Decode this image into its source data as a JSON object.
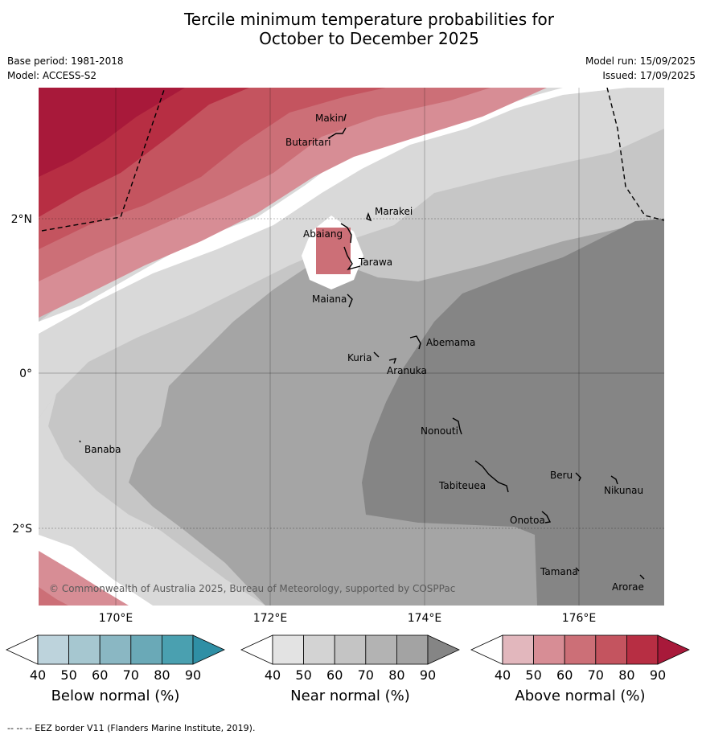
{
  "title_line1": "Tercile minimum temperature probabilities for",
  "title_line2": "October to December 2025",
  "base_period": "Base period: 1981-2018",
  "model": "Model: ACCESS-S2",
  "model_run": "Model run: 15/09/2025",
  "issued": "Issued: 17/09/2025",
  "copyright": "© Commonwealth of Australia 2025, Bureau of Meteorology, supported by COSPPac",
  "footnote": "-- -- -- EEZ border V11 (Flanders Marine Institute, 2019).",
  "lat_labels": [
    "2°N",
    "0°",
    "2°S"
  ],
  "lon_labels": [
    "170°E",
    "172°E",
    "174°E",
    "176°E"
  ],
  "places": [
    "Makin",
    "Butaritari",
    "Marakei",
    "Abaiang",
    "Tarawa",
    "Maiana",
    "Abemama",
    "Kuria",
    "Aranuka",
    "Nonouti",
    "Banaba",
    "Beru",
    "Nikunau",
    "Tabiteuea",
    "Onotoa",
    "Tamana",
    "Arorae"
  ],
  "colorbars": [
    {
      "label": "Below normal (%)",
      "ticks": [
        "40",
        "50",
        "60",
        "70",
        "80",
        "90"
      ],
      "colors": [
        "#ffffff",
        "#bdd3dc",
        "#a6c7d0",
        "#8ab7c3",
        "#6aa9b7",
        "#4aa0b0",
        "#2f8fa5"
      ]
    },
    {
      "label": "Near normal (%)",
      "ticks": [
        "40",
        "50",
        "60",
        "70",
        "80",
        "90"
      ],
      "colors": [
        "#ffffff",
        "#e3e3e3",
        "#d3d3d3",
        "#c4c4c4",
        "#b3b3b3",
        "#a3a3a3",
        "#858585"
      ]
    },
    {
      "label": "Above normal (%)",
      "ticks": [
        "40",
        "50",
        "60",
        "70",
        "80",
        "90"
      ],
      "colors": [
        "#ffffff",
        "#e2b7bd",
        "#d78d95",
        "#cc6f77",
        "#c4545f",
        "#b72e43",
        "#a8193a"
      ]
    }
  ],
  "colors": {
    "near_40": "#ffffff",
    "near_50": "#d9d9d9",
    "near_60": "#c6c6c6",
    "near_70": "#a5a5a5",
    "near_80": "#858585",
    "above_50": "#d78d95",
    "above_60": "#cc6f77",
    "above_70": "#c4545f",
    "above_80": "#b72e43",
    "above_90": "#a8193a"
  }
}
